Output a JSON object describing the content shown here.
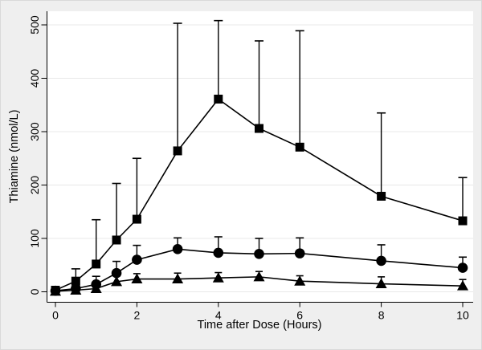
{
  "figure": {
    "background": "#efefef",
    "plot_background": "#ffffff",
    "grid_color": "#e8e8e8",
    "axis_color": "#000000",
    "text_color": "#000000"
  },
  "chart_data": {
    "type": "line",
    "title": "",
    "xlabel": "Time after Dose (Hours)",
    "ylabel": "Thiamine (nmol/L)",
    "xlim": [
      0,
      10
    ],
    "ylim": [
      0,
      500
    ],
    "x_ticks": [
      0,
      2,
      4,
      6,
      8,
      10
    ],
    "y_ticks": [
      0,
      100,
      200,
      300,
      400,
      500
    ],
    "grid": "horizontal-only",
    "legend": "none",
    "error_bars": "upper-only",
    "marker_color": "#000000",
    "x": [
      0,
      0.5,
      1,
      1.5,
      2,
      3,
      4,
      5,
      6,
      8,
      10
    ],
    "series": [
      {
        "name": "squares-high-curve",
        "marker": "square",
        "values": [
          3,
          20,
          52,
          97,
          136,
          264,
          361,
          306,
          271,
          179,
          133
        ],
        "upper": [
          3,
          43,
          135,
          203,
          250,
          503,
          508,
          470,
          489,
          335,
          214
        ]
      },
      {
        "name": "circles-mid-curve",
        "marker": "circle",
        "values": [
          2,
          6,
          14,
          35,
          60,
          80,
          73,
          71,
          72,
          58,
          45
        ],
        "upper": [
          2,
          6,
          29,
          57,
          87,
          101,
          103,
          100,
          101,
          88,
          65
        ]
      },
      {
        "name": "triangles-low-curve",
        "marker": "triangle",
        "values": [
          1,
          3,
          6,
          19,
          24,
          24,
          26,
          28,
          20,
          15,
          11
        ],
        "upper": [
          1,
          3,
          6,
          29,
          34,
          35,
          36,
          38,
          30,
          28,
          23
        ]
      }
    ]
  }
}
